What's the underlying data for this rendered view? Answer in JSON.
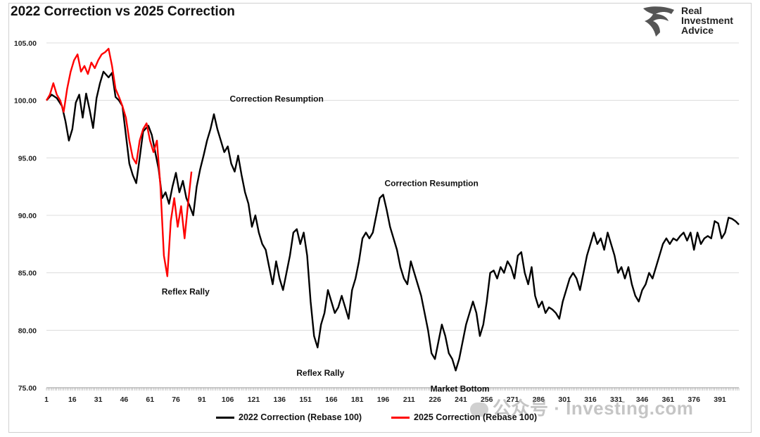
{
  "title": "2022 Correction vs 2025 Correction",
  "logo": {
    "lines": [
      "Real",
      "Investment",
      "Advice"
    ],
    "icon": "eagle-icon"
  },
  "watermark": {
    "text": "公众号 · Investing.com",
    "icon": "wechat-icon"
  },
  "colors": {
    "series_2022": "#000000",
    "series_2025": "#ff0000",
    "grid": "#dcdcdc"
  },
  "chart_data": {
    "type": "line",
    "title": "2022 Correction vs 2025 Correction",
    "xlabel": "",
    "ylabel": "",
    "xlim": [
      1,
      402
    ],
    "ylim": [
      75,
      105
    ],
    "y_ticks": [
      "75.00",
      "80.00",
      "85.00",
      "90.00",
      "95.00",
      "100.00",
      "105.00"
    ],
    "x_ticks": [
      "1",
      "16",
      "31",
      "46",
      "61",
      "76",
      "91",
      "106",
      "121",
      "136",
      "151",
      "166",
      "181",
      "196",
      "211",
      "226",
      "241",
      "256",
      "271",
      "286",
      "301",
      "316",
      "331",
      "346",
      "361",
      "376",
      "391"
    ],
    "grid": "horizontal",
    "legend_position": "bottom",
    "series": [
      {
        "name": "2022 Correction (Rebase 100)",
        "color": "#000000",
        "points": [
          [
            1,
            100.0
          ],
          [
            4,
            100.5
          ],
          [
            7,
            100.2
          ],
          [
            10,
            99.5
          ],
          [
            12,
            98.2
          ],
          [
            14,
            96.5
          ],
          [
            16,
            97.5
          ],
          [
            18,
            99.8
          ],
          [
            20,
            100.5
          ],
          [
            22,
            98.5
          ],
          [
            24,
            100.6
          ],
          [
            26,
            99.2
          ],
          [
            28,
            97.6
          ],
          [
            30,
            100.2
          ],
          [
            32,
            101.5
          ],
          [
            34,
            102.5
          ],
          [
            37,
            102.0
          ],
          [
            39,
            102.4
          ],
          [
            41,
            100.3
          ],
          [
            43,
            100.0
          ],
          [
            45,
            99.5
          ],
          [
            47,
            97.0
          ],
          [
            49,
            94.5
          ],
          [
            51,
            93.5
          ],
          [
            53,
            92.8
          ],
          [
            55,
            95.0
          ],
          [
            57,
            97.3
          ],
          [
            60,
            97.8
          ],
          [
            62,
            97.0
          ],
          [
            64,
            95.5
          ],
          [
            66,
            94.0
          ],
          [
            68,
            91.5
          ],
          [
            70,
            92.0
          ],
          [
            72,
            91.0
          ],
          [
            74,
            92.5
          ],
          [
            76,
            93.7
          ],
          [
            78,
            92.0
          ],
          [
            80,
            93.0
          ],
          [
            82,
            91.5
          ],
          [
            84,
            90.8
          ],
          [
            86,
            90.0
          ],
          [
            88,
            92.5
          ],
          [
            90,
            94.0
          ],
          [
            92,
            95.2
          ],
          [
            94,
            96.5
          ],
          [
            96,
            97.5
          ],
          [
            98,
            98.8
          ],
          [
            100,
            97.5
          ],
          [
            102,
            96.5
          ],
          [
            104,
            95.5
          ],
          [
            106,
            96.0
          ],
          [
            108,
            94.5
          ],
          [
            110,
            93.8
          ],
          [
            112,
            95.2
          ],
          [
            114,
            93.5
          ],
          [
            116,
            92.0
          ],
          [
            118,
            91.0
          ],
          [
            120,
            89.0
          ],
          [
            122,
            90.0
          ],
          [
            124,
            88.5
          ],
          [
            126,
            87.5
          ],
          [
            128,
            87.0
          ],
          [
            130,
            85.5
          ],
          [
            132,
            84.0
          ],
          [
            134,
            86.0
          ],
          [
            136,
            84.5
          ],
          [
            138,
            83.5
          ],
          [
            140,
            85.0
          ],
          [
            142,
            86.5
          ],
          [
            144,
            88.5
          ],
          [
            146,
            88.8
          ],
          [
            148,
            87.5
          ],
          [
            150,
            88.5
          ],
          [
            152,
            86.5
          ],
          [
            154,
            82.5
          ],
          [
            156,
            79.5
          ],
          [
            158,
            78.5
          ],
          [
            160,
            80.5
          ],
          [
            162,
            81.5
          ],
          [
            164,
            83.5
          ],
          [
            166,
            82.5
          ],
          [
            168,
            81.5
          ],
          [
            170,
            82.0
          ],
          [
            172,
            83.0
          ],
          [
            174,
            82.0
          ],
          [
            176,
            81.0
          ],
          [
            178,
            83.5
          ],
          [
            180,
            84.5
          ],
          [
            182,
            86.0
          ],
          [
            184,
            88.0
          ],
          [
            186,
            88.5
          ],
          [
            188,
            88.0
          ],
          [
            190,
            88.5
          ],
          [
            192,
            90.0
          ],
          [
            194,
            91.5
          ],
          [
            196,
            91.8
          ],
          [
            198,
            90.5
          ],
          [
            200,
            89.0
          ],
          [
            202,
            88.0
          ],
          [
            204,
            87.0
          ],
          [
            206,
            85.5
          ],
          [
            208,
            84.5
          ],
          [
            210,
            84.0
          ],
          [
            212,
            86.0
          ],
          [
            214,
            85.0
          ],
          [
            216,
            84.0
          ],
          [
            218,
            83.0
          ],
          [
            220,
            81.5
          ],
          [
            222,
            80.0
          ],
          [
            224,
            78.0
          ],
          [
            226,
            77.5
          ],
          [
            228,
            79.0
          ],
          [
            230,
            80.5
          ],
          [
            232,
            79.5
          ],
          [
            234,
            78.0
          ],
          [
            236,
            77.5
          ],
          [
            238,
            76.5
          ],
          [
            240,
            77.5
          ],
          [
            242,
            79.0
          ],
          [
            244,
            80.5
          ],
          [
            246,
            81.5
          ],
          [
            248,
            82.5
          ],
          [
            250,
            81.5
          ],
          [
            252,
            79.5
          ],
          [
            254,
            80.5
          ],
          [
            256,
            82.5
          ],
          [
            258,
            85.0
          ],
          [
            260,
            85.2
          ],
          [
            262,
            84.5
          ],
          [
            264,
            85.5
          ],
          [
            266,
            85.0
          ],
          [
            268,
            86.0
          ],
          [
            270,
            85.5
          ],
          [
            272,
            84.5
          ],
          [
            274,
            86.5
          ],
          [
            276,
            86.8
          ],
          [
            278,
            85.0
          ],
          [
            280,
            84.0
          ],
          [
            282,
            85.5
          ],
          [
            284,
            83.0
          ],
          [
            286,
            82.0
          ],
          [
            288,
            82.5
          ],
          [
            290,
            81.5
          ],
          [
            292,
            82.0
          ],
          [
            294,
            81.8
          ],
          [
            296,
            81.5
          ],
          [
            298,
            81.0
          ],
          [
            300,
            82.5
          ],
          [
            302,
            83.5
          ],
          [
            304,
            84.5
          ],
          [
            306,
            85.0
          ],
          [
            308,
            84.5
          ],
          [
            310,
            83.5
          ],
          [
            312,
            85.0
          ],
          [
            314,
            86.5
          ],
          [
            316,
            87.5
          ],
          [
            318,
            88.5
          ],
          [
            320,
            87.5
          ],
          [
            322,
            88.0
          ],
          [
            324,
            87.0
          ],
          [
            326,
            88.5
          ],
          [
            328,
            87.5
          ],
          [
            330,
            86.5
          ],
          [
            332,
            85.0
          ],
          [
            334,
            85.5
          ],
          [
            336,
            84.5
          ],
          [
            338,
            85.5
          ],
          [
            340,
            84.0
          ],
          [
            342,
            83.0
          ],
          [
            344,
            82.5
          ],
          [
            346,
            83.5
          ],
          [
            348,
            84.0
          ],
          [
            350,
            85.0
          ],
          [
            352,
            84.5
          ],
          [
            354,
            85.5
          ],
          [
            356,
            86.5
          ],
          [
            358,
            87.5
          ],
          [
            360,
            88.0
          ],
          [
            362,
            87.5
          ],
          [
            364,
            88.0
          ],
          [
            366,
            87.8
          ],
          [
            368,
            88.2
          ],
          [
            370,
            88.5
          ],
          [
            372,
            87.8
          ],
          [
            374,
            88.5
          ],
          [
            376,
            87.0
          ],
          [
            378,
            88.5
          ],
          [
            380,
            87.5
          ],
          [
            382,
            88.0
          ],
          [
            384,
            88.2
          ],
          [
            386,
            88.0
          ],
          [
            388,
            89.5
          ],
          [
            390,
            89.3
          ],
          [
            392,
            88.0
          ],
          [
            394,
            88.5
          ],
          [
            396,
            89.8
          ],
          [
            398,
            89.7
          ],
          [
            400,
            89.5
          ],
          [
            402,
            89.2
          ]
        ]
      },
      {
        "name": "2025 Correction (Rebase 100)",
        "color": "#ff0000",
        "points": [
          [
            1,
            100.0
          ],
          [
            3,
            100.5
          ],
          [
            5,
            101.5
          ],
          [
            7,
            100.5
          ],
          [
            9,
            100.0
          ],
          [
            11,
            99.0
          ],
          [
            13,
            101.0
          ],
          [
            15,
            102.5
          ],
          [
            17,
            103.5
          ],
          [
            19,
            104.0
          ],
          [
            21,
            102.5
          ],
          [
            23,
            103.0
          ],
          [
            25,
            102.3
          ],
          [
            27,
            103.3
          ],
          [
            29,
            102.8
          ],
          [
            31,
            103.5
          ],
          [
            33,
            104.0
          ],
          [
            35,
            104.2
          ],
          [
            37,
            104.5
          ],
          [
            39,
            103.0
          ],
          [
            41,
            101.0
          ],
          [
            43,
            100.3
          ],
          [
            45,
            99.5
          ],
          [
            47,
            98.5
          ],
          [
            49,
            96.5
          ],
          [
            51,
            95.0
          ],
          [
            53,
            94.5
          ],
          [
            55,
            96.5
          ],
          [
            57,
            97.5
          ],
          [
            59,
            98.0
          ],
          [
            61,
            96.5
          ],
          [
            63,
            95.5
          ],
          [
            65,
            96.5
          ],
          [
            67,
            92.5
          ],
          [
            69,
            86.5
          ],
          [
            71,
            84.7
          ],
          [
            73,
            89.5
          ],
          [
            75,
            91.5
          ],
          [
            77,
            89.0
          ],
          [
            79,
            90.8
          ],
          [
            81,
            88.0
          ],
          [
            83,
            91.0
          ],
          [
            85,
            93.8
          ]
        ]
      }
    ],
    "annotations": [
      {
        "text": "Correction Resumption",
        "x": 99,
        "y": 98.8
      },
      {
        "text": "Correction Resumption",
        "x": 196,
        "y": 91.8
      },
      {
        "text": "Reflex Rally",
        "x": 71,
        "y": 84.7
      },
      {
        "text": "Reflex Rally",
        "x": 158,
        "y": 78.5
      },
      {
        "text": "Market Bottom",
        "x": 238,
        "y": 76.5
      }
    ]
  },
  "legend": {
    "items": [
      {
        "label": "2022 Correction (Rebase 100)",
        "color": "#000000"
      },
      {
        "label": "2025 Correction (Rebase 100)",
        "color": "#ff0000"
      }
    ]
  }
}
